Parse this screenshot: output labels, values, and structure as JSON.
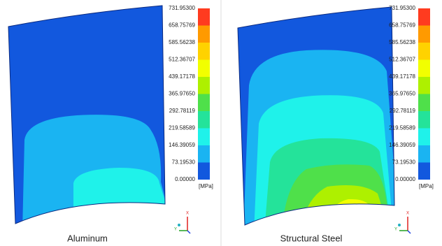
{
  "panels": [
    {
      "label": "Aluminum"
    },
    {
      "label": "Structural Steel"
    }
  ],
  "colorbar": {
    "labels": [
      "731.95300",
      "658.75769",
      "585.56238",
      "512.36707",
      "439.17178",
      "365.97650",
      "292.78119",
      "219.58589",
      "146.39059",
      "73.19530",
      "0.00000"
    ],
    "unit": "[MPa]",
    "colors": [
      "#ff3b1f",
      "#ff9a00",
      "#ffd200",
      "#f2ff00",
      "#aef000",
      "#4fe04a",
      "#24e39a",
      "#1ff2ea",
      "#1ab4f2",
      "#1258de"
    ]
  },
  "triad": {
    "x": "X",
    "y": "Y"
  }
}
